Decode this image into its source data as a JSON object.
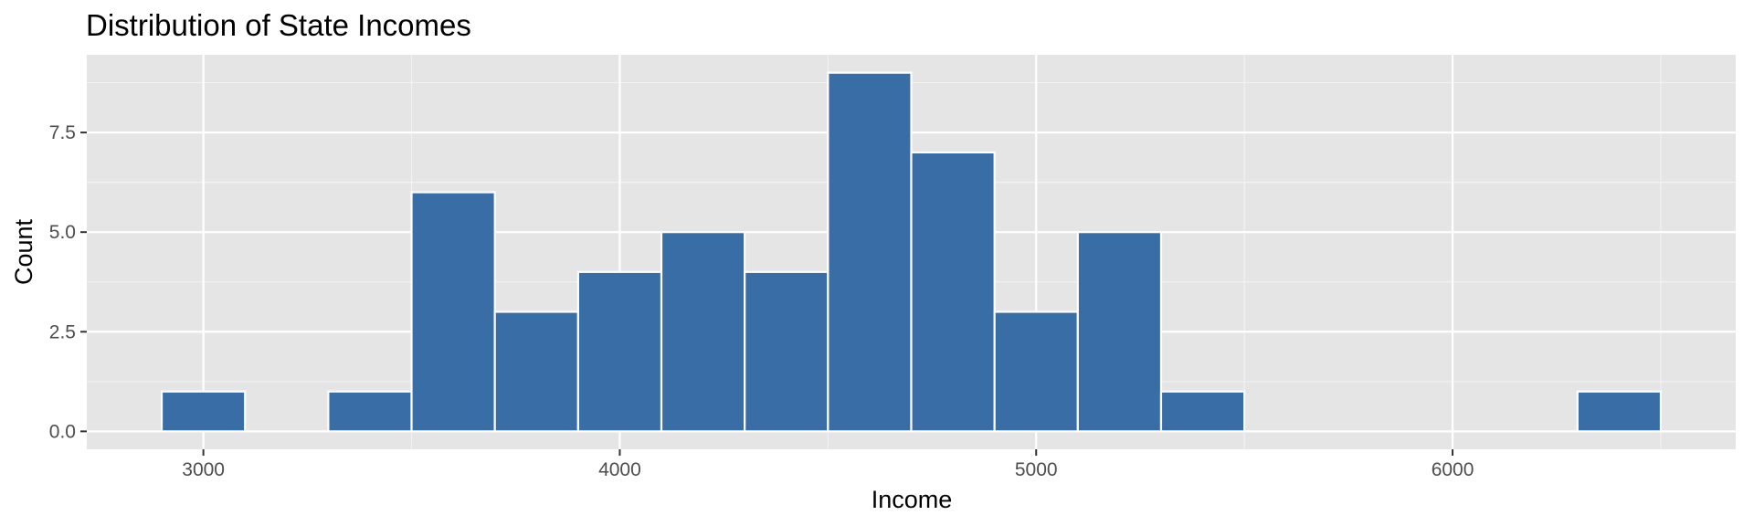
{
  "chart_data": {
    "type": "bar",
    "title": "Distribution of State Incomes",
    "xlabel": "Income",
    "ylabel": "Count",
    "bin_width": 200,
    "bins": [
      {
        "x_start": 2900,
        "x_end": 3100,
        "count": 1
      },
      {
        "x_start": 3100,
        "x_end": 3300,
        "count": 0
      },
      {
        "x_start": 3300,
        "x_end": 3500,
        "count": 1
      },
      {
        "x_start": 3500,
        "x_end": 3700,
        "count": 6
      },
      {
        "x_start": 3700,
        "x_end": 3900,
        "count": 3
      },
      {
        "x_start": 3900,
        "x_end": 4100,
        "count": 4
      },
      {
        "x_start": 4100,
        "x_end": 4300,
        "count": 5
      },
      {
        "x_start": 4300,
        "x_end": 4500,
        "count": 4
      },
      {
        "x_start": 4500,
        "x_end": 4700,
        "count": 9
      },
      {
        "x_start": 4700,
        "x_end": 4900,
        "count": 7
      },
      {
        "x_start": 4900,
        "x_end": 5100,
        "count": 3
      },
      {
        "x_start": 5100,
        "x_end": 5300,
        "count": 5
      },
      {
        "x_start": 5300,
        "x_end": 5500,
        "count": 1
      },
      {
        "x_start": 5500,
        "x_end": 5700,
        "count": 0
      },
      {
        "x_start": 5700,
        "x_end": 5900,
        "count": 0
      },
      {
        "x_start": 5900,
        "x_end": 6100,
        "count": 0
      },
      {
        "x_start": 6100,
        "x_end": 6300,
        "count": 0
      },
      {
        "x_start": 6300,
        "x_end": 6500,
        "count": 1
      }
    ],
    "xlim": [
      2720,
      6680
    ],
    "ylim": [
      -0.45,
      9.45
    ],
    "x_ticks": [
      3000,
      4000,
      5000,
      6000
    ],
    "x_tick_labels": [
      "3000",
      "4000",
      "5000",
      "6000"
    ],
    "y_ticks": [
      0,
      2.5,
      5,
      7.5
    ],
    "y_tick_labels": [
      "0.0",
      "2.5",
      "5.0",
      "7.5"
    ],
    "grid": true,
    "legend": "none",
    "colors": {
      "bar_fill": "#386DA6",
      "bar_outline": "#FFFFFF",
      "panel_background": "#E5E5E5",
      "grid_major": "#FFFFFF",
      "grid_minor": "#F2F2F2",
      "tick_text": "#4D4D4D",
      "axis_ticks": "#333333"
    }
  }
}
